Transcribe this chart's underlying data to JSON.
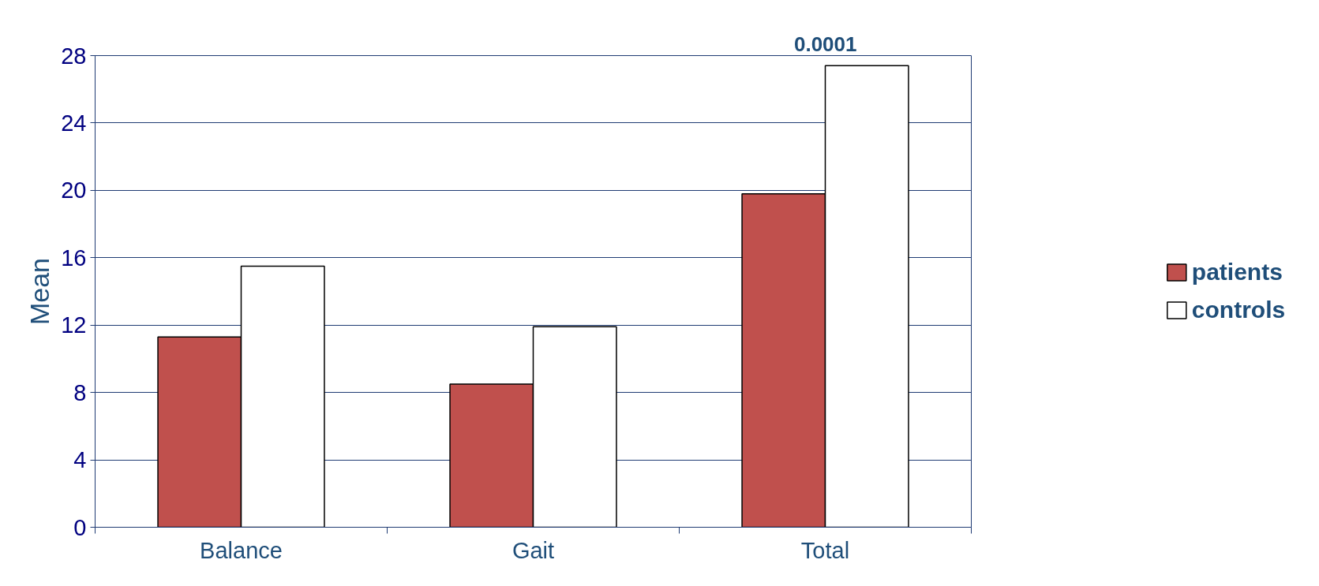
{
  "chart_data": {
    "type": "bar",
    "ylabel": "Mean",
    "categories": [
      "Balance",
      "Gait",
      "Total"
    ],
    "series": [
      {
        "name": "patients",
        "color": "#c0504d",
        "values": [
          11.3,
          8.5,
          19.8
        ]
      },
      {
        "name": "controls",
        "color": "#ffffff",
        "values": [
          15.5,
          11.9,
          27.4
        ]
      }
    ],
    "ylim": [
      0,
      28
    ],
    "yticks": [
      0,
      4,
      8,
      12,
      16,
      20,
      24,
      28
    ],
    "grid": "y",
    "legend": "right",
    "annotations": [
      "0.0001"
    ]
  }
}
